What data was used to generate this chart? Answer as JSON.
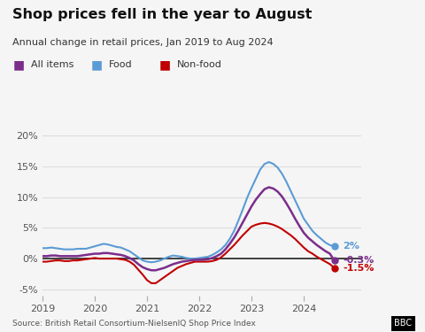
{
  "title": "Shop prices fell in the year to August",
  "subtitle": "Annual change in retail prices, Jan 2019 to Aug 2024",
  "source": "Source: British Retail Consortium-NielsenIQ Shop Price Index",
  "legend": [
    "All items",
    "Food",
    "Non-food"
  ],
  "legend_colors": [
    "#7b2d8b",
    "#5b9bd5",
    "#c00000"
  ],
  "ylim": [
    -6,
    21
  ],
  "yticks": [
    -5,
    0,
    5,
    10,
    15,
    20
  ],
  "ytick_labels": [
    "-5%",
    "0%",
    "5%",
    "10%",
    "15%",
    "20%"
  ],
  "end_labels": [
    {
      "text": "2%",
      "color": "#5b9bd5",
      "value": 2.0
    },
    {
      "text": "-0.3%",
      "color": "#7b2d8b",
      "value": -0.3
    },
    {
      "text": "-1.5%",
      "color": "#c00000",
      "value": -1.5
    }
  ],
  "background_color": "#f5f5f5",
  "zero_line_color": "#333333",
  "grid_color": "#dddddd",
  "food": [
    1.7,
    1.7,
    1.8,
    1.7,
    1.6,
    1.5,
    1.5,
    1.5,
    1.6,
    1.6,
    1.6,
    1.8,
    2.0,
    2.2,
    2.4,
    2.3,
    2.1,
    1.9,
    1.8,
    1.5,
    1.2,
    0.7,
    0.2,
    -0.3,
    -0.5,
    -0.6,
    -0.5,
    -0.3,
    0.0,
    0.3,
    0.5,
    0.4,
    0.3,
    0.1,
    0.0,
    0.0,
    0.1,
    0.2,
    0.3,
    0.6,
    1.0,
    1.5,
    2.2,
    3.2,
    4.5,
    6.2,
    8.0,
    9.9,
    11.5,
    13.0,
    14.5,
    15.4,
    15.7,
    15.4,
    14.8,
    13.8,
    12.5,
    11.0,
    9.5,
    8.0,
    6.5,
    5.5,
    4.5,
    3.8,
    3.2,
    2.6,
    2.2,
    2.0
  ],
  "nonfood": [
    -0.5,
    -0.5,
    -0.4,
    -0.3,
    -0.3,
    -0.4,
    -0.4,
    -0.3,
    -0.3,
    -0.2,
    -0.1,
    0.0,
    0.1,
    0.0,
    0.0,
    0.0,
    0.0,
    0.0,
    -0.1,
    -0.2,
    -0.5,
    -1.0,
    -1.8,
    -2.6,
    -3.5,
    -4.0,
    -4.0,
    -3.5,
    -3.0,
    -2.5,
    -2.0,
    -1.5,
    -1.2,
    -0.9,
    -0.7,
    -0.5,
    -0.5,
    -0.5,
    -0.5,
    -0.4,
    -0.2,
    0.2,
    0.8,
    1.5,
    2.2,
    3.0,
    3.8,
    4.5,
    5.2,
    5.5,
    5.7,
    5.8,
    5.7,
    5.5,
    5.2,
    4.8,
    4.3,
    3.8,
    3.2,
    2.5,
    1.8,
    1.2,
    0.8,
    0.3,
    -0.1,
    -0.5,
    -0.9,
    -1.5
  ],
  "allitems": [
    0.4,
    0.4,
    0.5,
    0.5,
    0.4,
    0.4,
    0.4,
    0.4,
    0.4,
    0.5,
    0.6,
    0.7,
    0.8,
    0.8,
    0.9,
    0.9,
    0.8,
    0.7,
    0.6,
    0.4,
    0.1,
    -0.3,
    -0.9,
    -1.4,
    -1.7,
    -1.9,
    -1.9,
    -1.7,
    -1.5,
    -1.2,
    -0.9,
    -0.7,
    -0.5,
    -0.4,
    -0.3,
    -0.2,
    -0.2,
    -0.2,
    -0.1,
    0.1,
    0.4,
    0.8,
    1.5,
    2.4,
    3.4,
    4.6,
    5.9,
    7.2,
    8.5,
    9.6,
    10.5,
    11.3,
    11.6,
    11.4,
    10.9,
    10.1,
    9.0,
    7.8,
    6.5,
    5.3,
    4.2,
    3.4,
    2.8,
    2.2,
    1.7,
    1.2,
    0.8,
    -0.3
  ],
  "n_points": 68
}
